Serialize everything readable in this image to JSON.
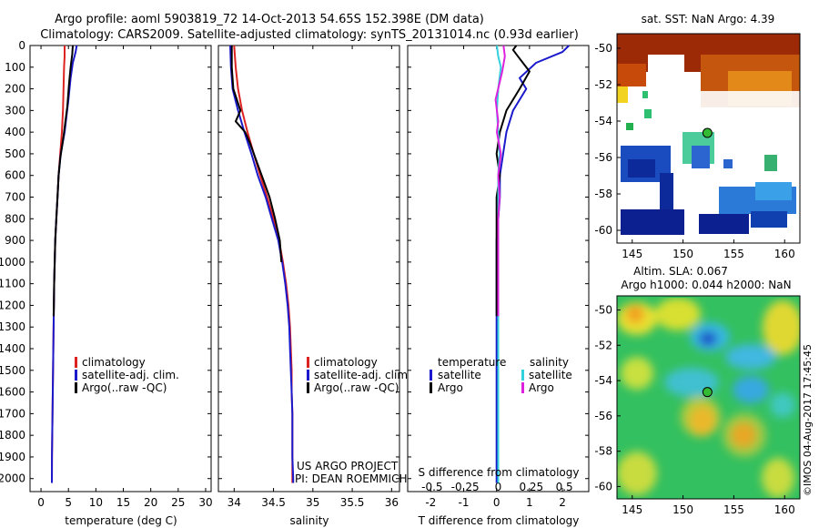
{
  "header": {
    "line1": "Argo profile: aoml 5903819_72 14-Oct-2013 54.65S 152.398E (DM data)",
    "line2": "Climatology: CARS2009. Satellite-adjusted climatology: synTS_20131014.nc (0.93d earlier)"
  },
  "colors": {
    "climatology": "#dd2222",
    "satellite": "#1a1acc",
    "argo": "#000000",
    "salinity_satellite": "#33d0dd",
    "salinity_argo": "#dd22dd",
    "axis": "#000000"
  },
  "chart_data": [
    {
      "type": "line",
      "name": "temperature-profile",
      "xlabel": "temperature (deg C)",
      "ylabel": "",
      "xlim": [
        -2,
        31
      ],
      "ylim": [
        2060,
        0
      ],
      "xticks": [
        0,
        5,
        10,
        15,
        20,
        25,
        30
      ],
      "yticks": [
        0,
        100,
        200,
        300,
        400,
        500,
        600,
        700,
        800,
        900,
        1000,
        1100,
        1200,
        1300,
        1400,
        1500,
        1600,
        1700,
        1800,
        1900,
        2000
      ],
      "legend": [
        "climatology",
        "satellite-adj. clim.",
        "Argo(..raw -QC)"
      ],
      "series": [
        {
          "name": "climatology",
          "color_key": "climatology",
          "x": [
            4.3,
            4.3,
            4.2,
            4.1,
            4.0,
            3.8,
            3.5,
            3.2,
            3.0,
            2.8,
            2.6,
            2.5,
            2.4,
            2.35,
            2.3,
            2.25,
            2.2,
            2.15,
            2.1,
            2.05,
            2.0,
            1.98
          ],
          "y": [
            0,
            50,
            100,
            200,
            300,
            400,
            500,
            600,
            700,
            800,
            900,
            1000,
            1100,
            1200,
            1300,
            1400,
            1500,
            1600,
            1700,
            1800,
            1900,
            2020
          ]
        },
        {
          "name": "satellite-adj. clim.",
          "color_key": "satellite",
          "x": [
            6.5,
            6.3,
            5.8,
            5.4,
            5.0,
            4.3,
            3.6,
            3.2,
            3.0,
            2.8,
            2.6,
            2.5,
            2.4,
            2.35,
            2.3,
            2.25,
            2.2,
            2.15,
            2.1,
            2.05,
            2.0,
            1.98
          ],
          "y": [
            0,
            30,
            80,
            150,
            250,
            400,
            500,
            600,
            700,
            800,
            900,
            1000,
            1100,
            1200,
            1300,
            1400,
            1500,
            1600,
            1700,
            1800,
            1900,
            2020
          ]
        },
        {
          "name": "Argo(..raw -QC)",
          "color_key": "argo",
          "x": [
            5.8,
            5.7,
            5.4,
            5.1,
            4.8,
            4.1,
            3.5,
            3.2,
            3.0,
            2.8,
            2.6,
            2.5,
            2.4,
            2.35,
            2.3
          ],
          "y": [
            0,
            40,
            100,
            180,
            280,
            420,
            520,
            600,
            700,
            800,
            900,
            1000,
            1100,
            1200,
            1250
          ]
        }
      ]
    },
    {
      "type": "line",
      "name": "salinity-profile",
      "xlabel": "salinity",
      "ylabel": "",
      "xlim": [
        33.8,
        36.1
      ],
      "ylim": [
        2060,
        0
      ],
      "xticks": [
        34,
        34.5,
        35,
        35.5,
        36
      ],
      "xticklabels": [
        "34",
        "34.5",
        "35",
        "35.5",
        "36"
      ],
      "legend": [
        "climatology",
        "satellite-adj. clim.",
        "Argo(..raw -QC)"
      ],
      "series": [
        {
          "name": "climatology",
          "color_key": "climatology",
          "x": [
            34.0,
            34.02,
            34.05,
            34.1,
            34.17,
            34.25,
            34.33,
            34.42,
            34.5,
            34.57,
            34.62,
            34.66,
            34.69,
            34.71,
            34.72,
            34.73,
            34.73,
            34.74,
            34.74,
            34.74,
            34.74,
            34.74
          ],
          "y": [
            0,
            100,
            200,
            300,
            400,
            500,
            600,
            700,
            800,
            900,
            1000,
            1100,
            1200,
            1300,
            1400,
            1500,
            1600,
            1700,
            1800,
            1900,
            2000,
            2020
          ]
        },
        {
          "name": "satellite-adj. clim.",
          "color_key": "satellite",
          "x": [
            33.95,
            33.96,
            33.98,
            34.05,
            34.13,
            34.22,
            34.3,
            34.4,
            34.48,
            34.56,
            34.61,
            34.65,
            34.68,
            34.7,
            34.71,
            34.72,
            34.73,
            34.74,
            34.74,
            34.74,
            34.75,
            34.75
          ],
          "y": [
            0,
            100,
            200,
            300,
            400,
            500,
            600,
            700,
            800,
            900,
            1000,
            1100,
            1200,
            1300,
            1400,
            1500,
            1600,
            1700,
            1800,
            1900,
            2000,
            2020
          ]
        },
        {
          "name": "Argo(..raw -QC)",
          "color_key": "argo",
          "x": [
            33.97,
            33.97,
            33.99,
            34.08,
            34.02,
            34.14,
            34.2,
            34.25,
            34.35,
            34.45,
            34.52,
            34.58,
            34.6
          ],
          "y": [
            0,
            100,
            200,
            300,
            350,
            400,
            450,
            500,
            600,
            700,
            800,
            900,
            1000
          ]
        }
      ]
    },
    {
      "type": "line",
      "name": "difference-profile",
      "xlabel": "T difference from climatology",
      "top_axis_label": "S difference from climatology",
      "xlim": [
        -2.7,
        2.8
      ],
      "ylim": [
        2060,
        0
      ],
      "xticks": [
        -2,
        -1,
        0,
        1,
        2
      ],
      "top_ticks": [
        -0.5,
        -0.25,
        0,
        0.25,
        0.5
      ],
      "top_ticklabels": [
        "-0.5",
        "-0.25",
        "0",
        "0.25",
        "0.5"
      ],
      "legend_left_title": "temperature",
      "legend_right_title": "salinity",
      "legend_left": [
        "satellite",
        "Argo"
      ],
      "legend_right": [
        "satellite",
        "Argo"
      ],
      "series": [
        {
          "name": "temperature satellite",
          "color_key": "satellite",
          "x": [
            2.2,
            2.0,
            1.2,
            0.7,
            0.9,
            0.5,
            0.3,
            0.2,
            0.1,
            0.1,
            0.05,
            0.0,
            0.0,
            0.0,
            0.0,
            0.0,
            0.0,
            0.0,
            0.0,
            0.0,
            0.0,
            0.0
          ],
          "y": [
            0,
            30,
            80,
            150,
            200,
            300,
            400,
            500,
            600,
            700,
            800,
            900,
            1000,
            1100,
            1200,
            1300,
            1400,
            1500,
            1600,
            1700,
            1800,
            2020
          ]
        },
        {
          "name": "temperature Argo",
          "color_key": "argo",
          "x": [
            0.6,
            0.5,
            0.7,
            1.0,
            0.7,
            0.3,
            0.1,
            0.0,
            0.1,
            0.0,
            0.0,
            0.0,
            0.0,
            0.0
          ],
          "y": [
            0,
            20,
            60,
            120,
            200,
            300,
            400,
            500,
            600,
            700,
            800,
            900,
            1000,
            1250
          ]
        },
        {
          "name": "salinity satellite",
          "color_key": "salinity_satellite",
          "x": [
            -0.01,
            0.0,
            0.02,
            0.0,
            -0.01,
            0.0,
            0.01,
            0.0,
            0.0,
            0.0,
            0.0,
            0.0,
            0.0,
            0.0,
            0.0,
            0.0,
            0.0,
            0.0,
            0.0,
            0.0,
            0.0,
            0.0
          ],
          "y": [
            0,
            50,
            100,
            200,
            300,
            400,
            500,
            600,
            700,
            800,
            900,
            1000,
            1100,
            1200,
            1300,
            1400,
            1500,
            1600,
            1700,
            1800,
            1900,
            2020
          ]
        },
        {
          "name": "salinity Argo",
          "color_key": "salinity_argo",
          "x": [
            0.04,
            0.05,
            0.03,
            -0.02,
            0.0,
            -0.01,
            0.02,
            0.0,
            0.01,
            0.0,
            0.0,
            0.0,
            0.0
          ],
          "y": [
            0,
            50,
            120,
            250,
            350,
            400,
            500,
            600,
            700,
            800,
            900,
            1000,
            1250
          ]
        }
      ]
    },
    {
      "type": "heatmap",
      "name": "sst-map",
      "title": "sat. SST: NaN Argo: 4.39",
      "xlim": [
        143.5,
        161.5
      ],
      "ylim": [
        -60.7,
        -49.2
      ],
      "xticks": [
        145,
        150,
        155,
        160
      ],
      "yticks": [
        -50,
        -52,
        -54,
        -56,
        -58,
        -60
      ],
      "argo_position": [
        152.398,
        -54.65
      ]
    },
    {
      "type": "heatmap",
      "name": "sla-map",
      "title_line1": "Altim. SLA: 0.067",
      "title_line2": "Argo h1000: 0.044 h2000: NaN",
      "xlim": [
        143.5,
        161.5
      ],
      "ylim": [
        -60.7,
        -49.2
      ],
      "xticks": [
        145,
        150,
        155,
        160
      ],
      "yticks": [
        -50,
        -52,
        -54,
        -56,
        -58,
        -60
      ],
      "argo_position": [
        152.398,
        -54.65
      ]
    }
  ],
  "credits": {
    "project_line1": "US ARGO PROJECT",
    "project_line2": "PI: DEAN ROEMMICH",
    "stamp": "©IMOS 04-Aug-2017 17:45:45"
  }
}
